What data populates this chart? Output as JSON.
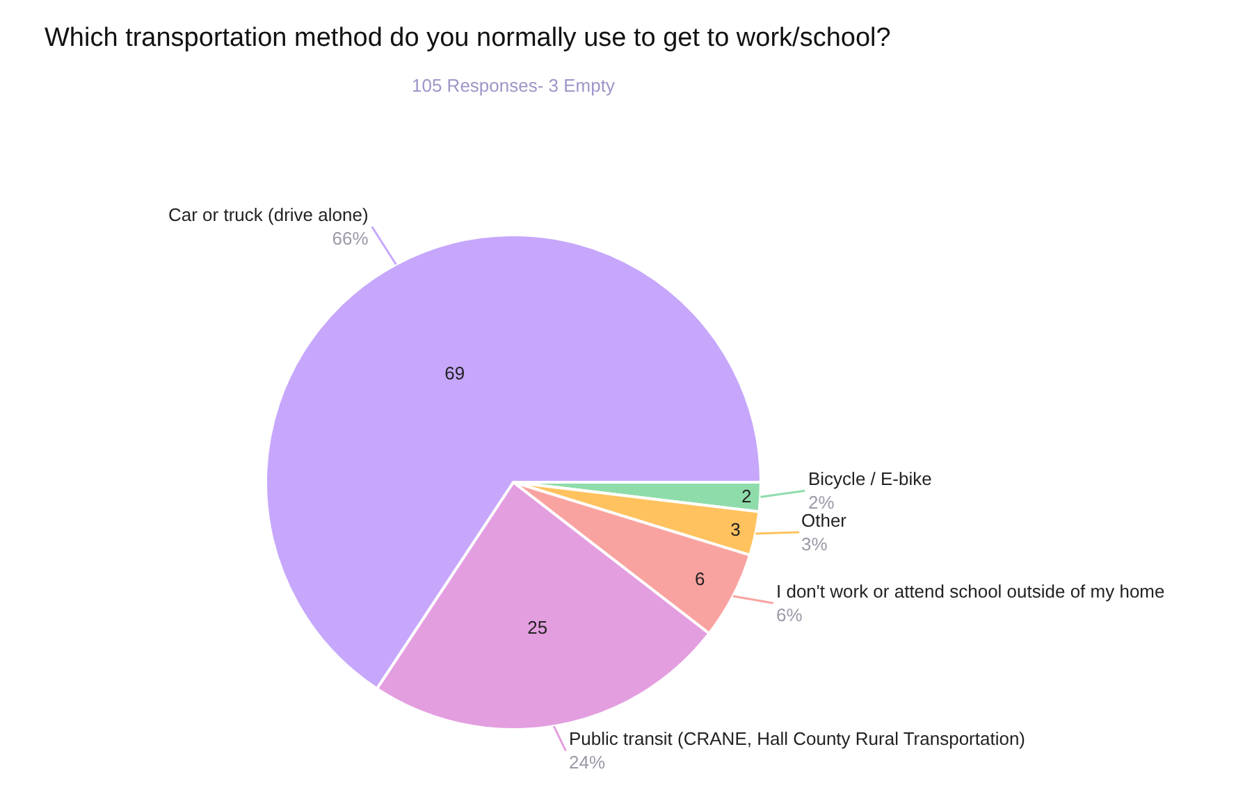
{
  "chart_data": {
    "type": "pie",
    "title": "Which transportation method do you normally use to get to work/school?",
    "subtitle": "105 Responses- 3 Empty",
    "categories": [
      "Bicycle / E-bike",
      "Other",
      "I don't work or attend school outside of my home",
      "Public transit (CRANE, Hall County Rural Transportation)",
      "Car or truck (drive alone)"
    ],
    "values": [
      2,
      3,
      6,
      25,
      69
    ],
    "colors": [
      "#8fdcab",
      "#ffc25e",
      "#f9a3a0",
      "#e39ee0",
      "#c6a7fc"
    ],
    "data_labels": true,
    "annotations": [
      "2%",
      "3%",
      "6%",
      "24%",
      "66%"
    ],
    "legend": false
  }
}
